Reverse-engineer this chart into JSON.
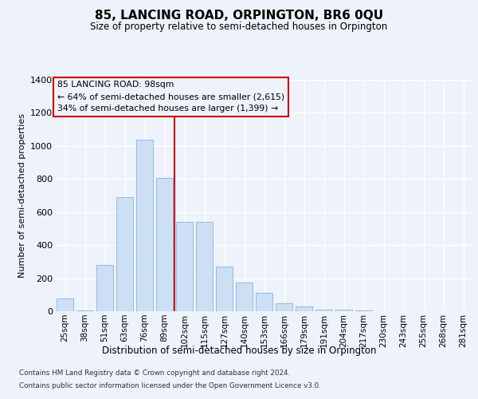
{
  "title": "85, LANCING ROAD, ORPINGTON, BR6 0QU",
  "subtitle": "Size of property relative to semi-detached houses in Orpington",
  "xlabel": "Distribution of semi-detached houses by size in Orpington",
  "ylabel": "Number of semi-detached properties",
  "categories": [
    "25sqm",
    "38sqm",
    "51sqm",
    "63sqm",
    "76sqm",
    "89sqm",
    "102sqm",
    "115sqm",
    "127sqm",
    "140sqm",
    "153sqm",
    "166sqm",
    "179sqm",
    "191sqm",
    "204sqm",
    "217sqm",
    "230sqm",
    "243sqm",
    "255sqm",
    "268sqm",
    "281sqm"
  ],
  "values": [
    75,
    5,
    280,
    690,
    1040,
    805,
    540,
    540,
    270,
    175,
    110,
    50,
    30,
    12,
    12,
    5,
    2,
    1,
    0,
    0,
    0
  ],
  "bar_color": "#ccdff5",
  "bar_edge_color": "#8ab4d8",
  "red_line_color": "#cc0000",
  "bg_color": "#edf2fb",
  "grid_color": "#ffffff",
  "red_line_index": 6,
  "annotation_line1": "85 LANCING ROAD: 98sqm",
  "annotation_line2": "← 64% of semi-detached houses are smaller (2,615)",
  "annotation_line3": "34% of semi-detached houses are larger (1,399) →",
  "ylim": [
    0,
    1400
  ],
  "yticks": [
    0,
    200,
    400,
    600,
    800,
    1000,
    1200,
    1400
  ],
  "footer1": "Contains HM Land Registry data © Crown copyright and database right 2024.",
  "footer2": "Contains public sector information licensed under the Open Government Licence v3.0."
}
